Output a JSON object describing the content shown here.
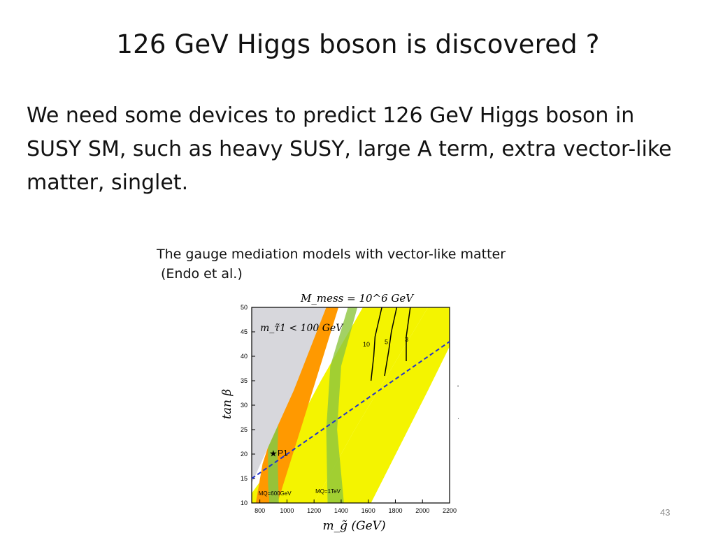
{
  "slide": {
    "title": "126 GeV Higgs boson is discovered ?",
    "body": "We need some devices to predict 126 GeV Higgs boson in SUSY SM, such as heavy SUSY, large A term, extra vector-like matter, singlet.",
    "caption_line1": "The gauge mediation models with vector-like matter",
    "caption_line2": "(Endo et al.)",
    "slide_number": "43"
  },
  "chart_data": {
    "type": "area",
    "title": "M_mess = 10^6 GeV",
    "xlabel": "m_g̃ (GeV)",
    "ylabel": "tan β",
    "xlim": [
      740,
      2200
    ],
    "ylim": [
      10,
      50
    ],
    "x_ticks": [
      "800",
      "1000",
      "1200",
      "1400",
      "1600",
      "1800",
      "2000",
      "2200"
    ],
    "y_ticks": [
      "10",
      "15",
      "20",
      "25",
      "30",
      "35",
      "40",
      "45",
      "50"
    ],
    "grid": false,
    "annotations": {
      "excluded_region": "m_τ̃1 < 100 GeV",
      "point": "P1",
      "mq_600": "MQ=600GeV",
      "mq_1tev": "MQ=1TeV",
      "contour_10": "10",
      "contour_5": "5",
      "contour_3": "3"
    },
    "point_p1": {
      "x": 900,
      "y": 20.2
    },
    "dashed_line": [
      [
        740,
        15
      ],
      [
        2200,
        43
      ]
    ],
    "contour_lines": [
      {
        "label": "10",
        "points": [
          [
            1620,
            35
          ],
          [
            1640,
            40
          ],
          [
            1650,
            44
          ],
          [
            1700,
            50
          ]
        ]
      },
      {
        "label": "5",
        "points": [
          [
            1720,
            36
          ],
          [
            1750,
            41
          ],
          [
            1770,
            45
          ],
          [
            1810,
            50
          ]
        ]
      },
      {
        "label": "3",
        "points": [
          [
            1880,
            39
          ],
          [
            1880,
            44
          ],
          [
            1910,
            50
          ]
        ]
      }
    ],
    "colors": {
      "excluded": "#d7d7dc",
      "yellow": "#f4f400",
      "orange": "#ff9900",
      "green": "#8cc63f",
      "dashed": "#2233cc"
    }
  }
}
